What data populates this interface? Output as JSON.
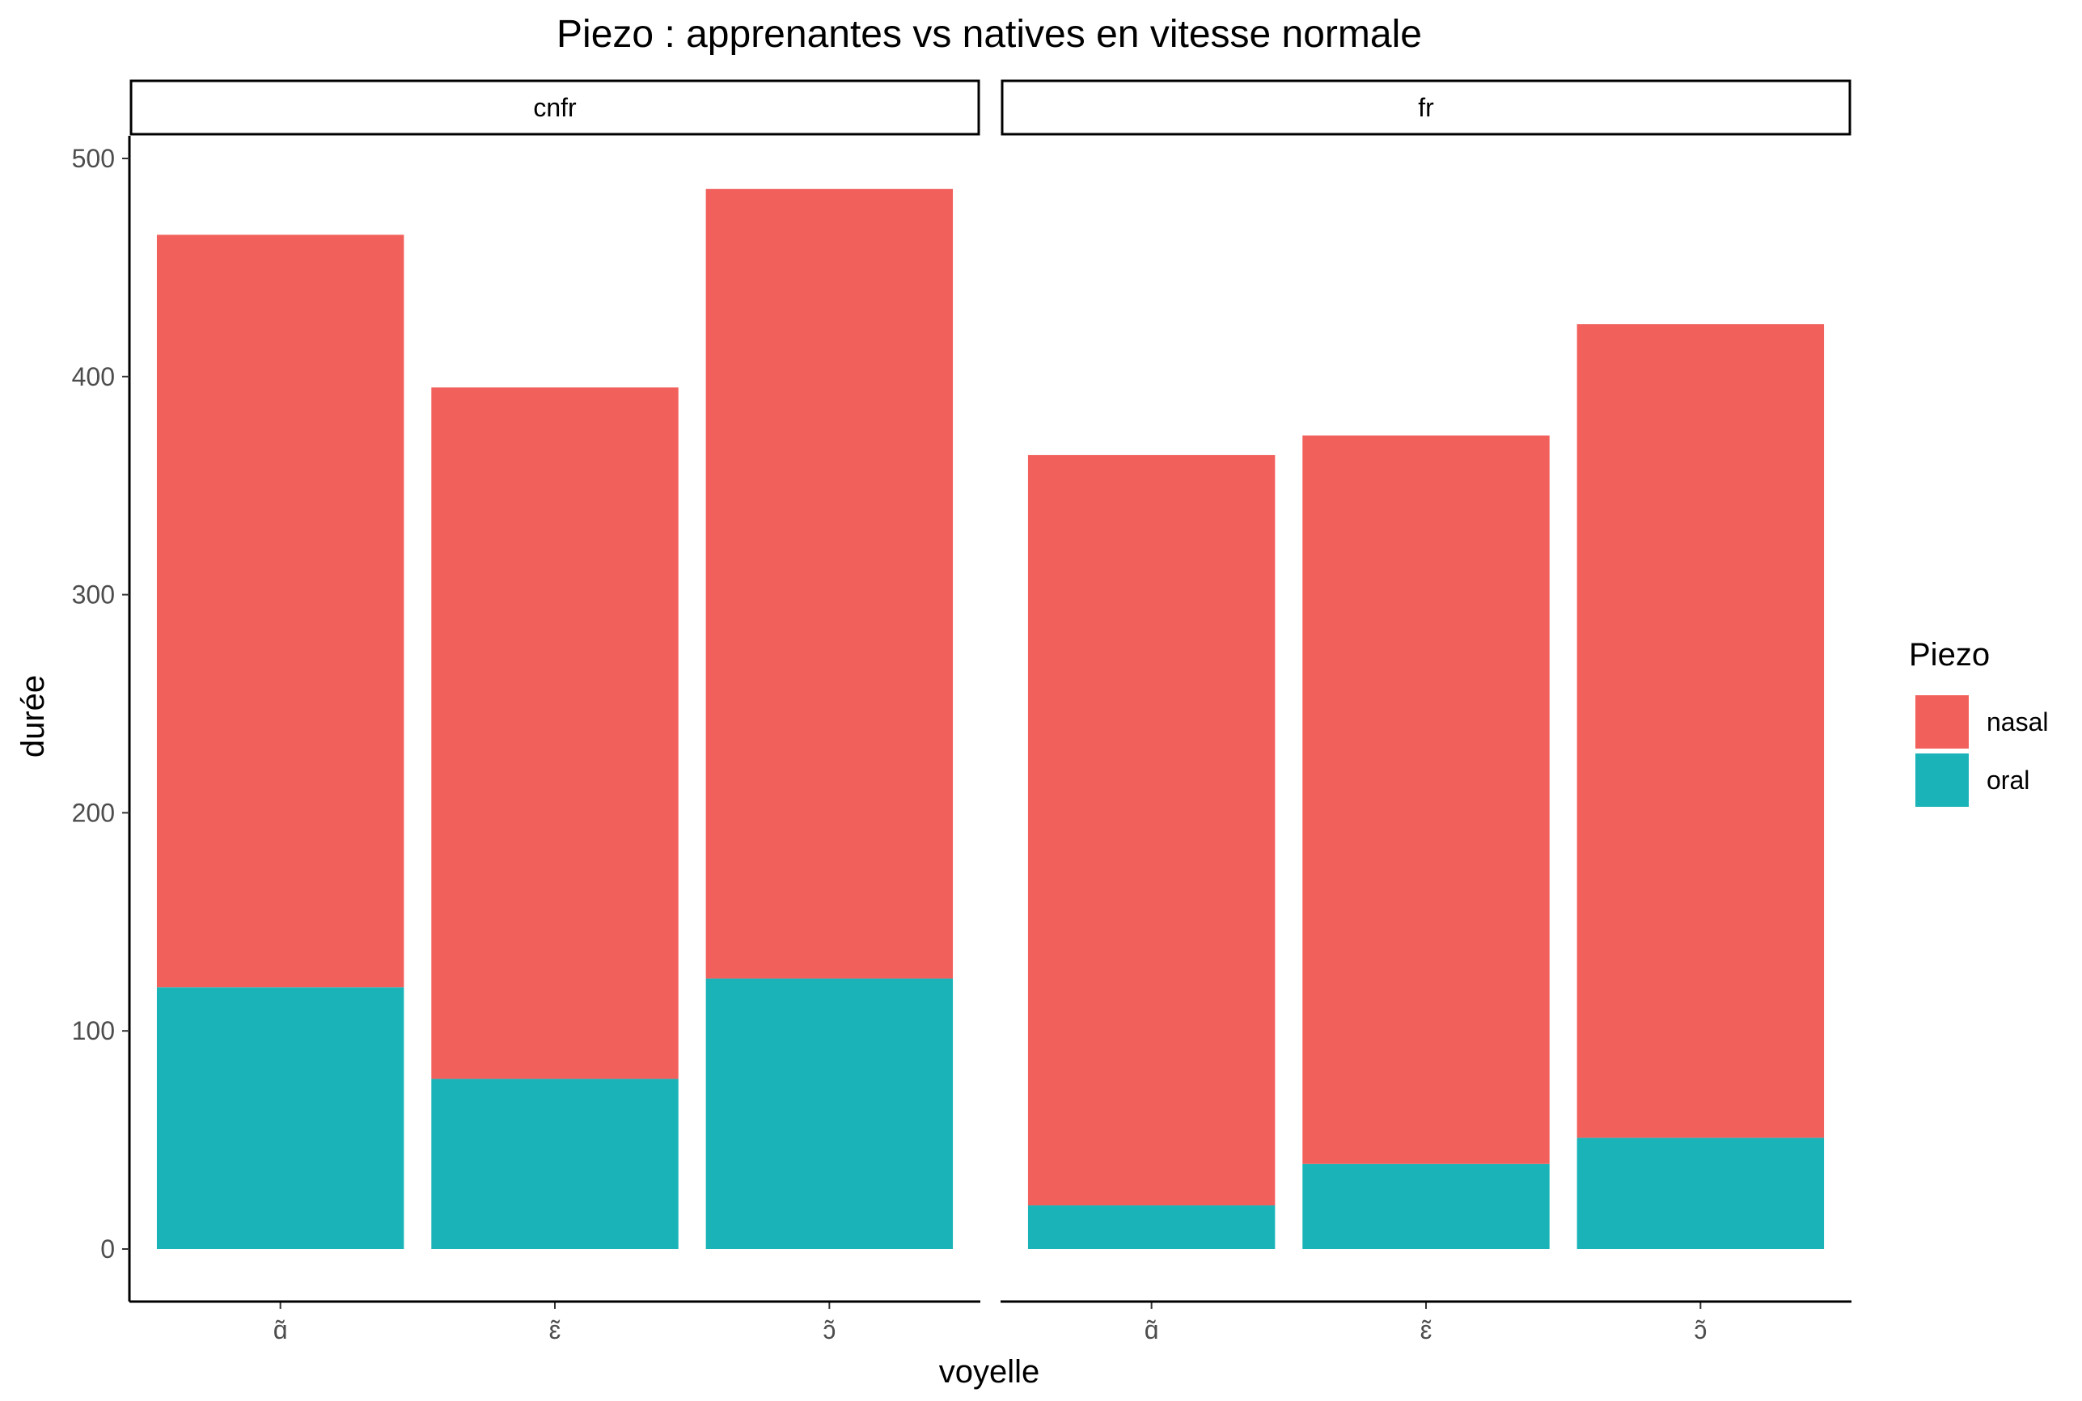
{
  "chart_data": {
    "type": "bar",
    "stacked": true,
    "title": "Piezo : apprenantes vs natives en vitesse normale",
    "xlabel": "voyelle",
    "ylabel": "durée",
    "ylim": [
      0,
      500
    ],
    "yticks": [
      0,
      100,
      200,
      300,
      400,
      500
    ],
    "grid": false,
    "legend": {
      "title": "Piezo",
      "position": "right",
      "entries": [
        {
          "label": "nasal",
          "color": "#F2605C"
        },
        {
          "label": "oral",
          "color": "#1AB4B8"
        }
      ]
    },
    "categories": [
      "ɑ̃",
      "ɛ̃",
      "ɔ̃"
    ],
    "facets": [
      {
        "label": "cnfr",
        "series": [
          {
            "name": "oral",
            "values": [
              120,
              78,
              124
            ]
          },
          {
            "name": "nasal",
            "values": [
              345,
              317,
              362
            ]
          }
        ]
      },
      {
        "label": "fr",
        "series": [
          {
            "name": "oral",
            "values": [
              20,
              39,
              51
            ]
          },
          {
            "name": "nasal",
            "values": [
              344,
              334,
              373
            ]
          }
        ]
      }
    ]
  }
}
